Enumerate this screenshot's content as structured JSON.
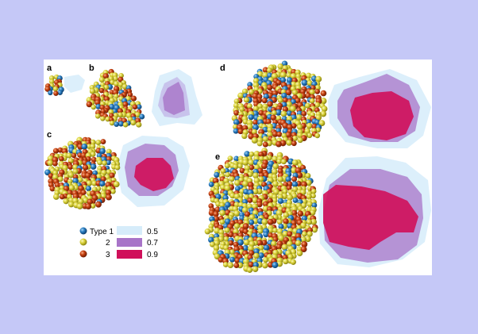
{
  "figure": {
    "panels": [
      {
        "id": "a",
        "label": "a"
      },
      {
        "id": "b",
        "label": "b"
      },
      {
        "id": "c",
        "label": "c"
      },
      {
        "id": "d",
        "label": "d"
      },
      {
        "id": "e",
        "label": "e"
      }
    ],
    "legend": {
      "atom_types": [
        {
          "label": "Type 1",
          "color": "#1f6fb4"
        },
        {
          "label": "2",
          "color": "#d8d23a"
        },
        {
          "label": "3",
          "color": "#c23a12"
        }
      ],
      "isosurface_levels": [
        {
          "label": "0.5",
          "color": "#d6ecfa"
        },
        {
          "label": "0.7",
          "color": "#a874c8"
        },
        {
          "label": "0.9",
          "color": "#d0105a"
        }
      ]
    }
  }
}
